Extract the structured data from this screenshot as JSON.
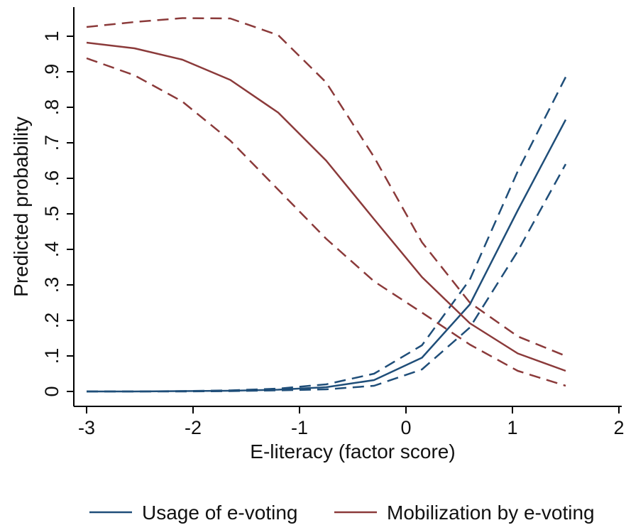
{
  "chart_data": {
    "type": "line",
    "title": "",
    "xlabel": "E-literacy (factor score)",
    "ylabel": "Predicted probability",
    "xlim": [
      -3,
      2
    ],
    "ylim": [
      0,
      1
    ],
    "x_ticks": [
      -3,
      -2,
      -1,
      0,
      1,
      2
    ],
    "x_tick_labels": [
      "-3",
      "-2",
      "-1",
      "0",
      "1",
      "2"
    ],
    "y_ticks": [
      0,
      0.1,
      0.2,
      0.3,
      0.4,
      0.5,
      0.6,
      0.7,
      0.8,
      0.9,
      1
    ],
    "y_tick_labels": [
      "0",
      ".1",
      ".2",
      ".3",
      ".4",
      ".5",
      ".6",
      ".7",
      ".8",
      ".9",
      "1"
    ],
    "grid": false,
    "legend_position": "bottom",
    "x": [
      -3,
      -2.55,
      -2.1,
      -1.65,
      -1.2,
      -0.75,
      -0.3,
      0.15,
      0.6,
      1.05,
      1.5
    ],
    "series": [
      {
        "name": "Usage of e-voting",
        "color": "#1f4e79",
        "style": "solid",
        "values": [
          0.0,
          0.0,
          0.001,
          0.002,
          0.005,
          0.012,
          0.032,
          0.095,
          0.245,
          0.51,
          0.765
        ]
      },
      {
        "name": "",
        "color": "#1f4e79",
        "style": "dashed",
        "values": [
          0.0,
          0.0,
          0.001,
          0.003,
          0.008,
          0.02,
          0.05,
          0.13,
          0.315,
          0.62,
          0.885
        ]
      },
      {
        "name": "",
        "color": "#1f4e79",
        "style": "dashed",
        "values": [
          0.0,
          0.0,
          0.0,
          0.001,
          0.003,
          0.006,
          0.016,
          0.062,
          0.18,
          0.395,
          0.64
        ]
      },
      {
        "name": "Mobilization by e-voting",
        "color": "#8b3a3a",
        "style": "solid",
        "values": [
          0.982,
          0.966,
          0.934,
          0.877,
          0.785,
          0.65,
          0.485,
          0.322,
          0.192,
          0.107,
          0.058
        ]
      },
      {
        "name": "",
        "color": "#8b3a3a",
        "style": "dashed",
        "values": [
          1.026,
          1.04,
          1.051,
          1.05,
          1.003,
          0.87,
          0.66,
          0.42,
          0.25,
          0.155,
          0.1
        ]
      },
      {
        "name": "",
        "color": "#8b3a3a",
        "style": "dashed",
        "values": [
          0.938,
          0.89,
          0.816,
          0.706,
          0.568,
          0.43,
          0.31,
          0.222,
          0.132,
          0.058,
          0.016
        ]
      }
    ],
    "legend": [
      {
        "label": "Usage of e-voting",
        "color": "#1f4e79"
      },
      {
        "label": "Mobilization by e-voting",
        "color": "#8b3a3a"
      }
    ]
  }
}
